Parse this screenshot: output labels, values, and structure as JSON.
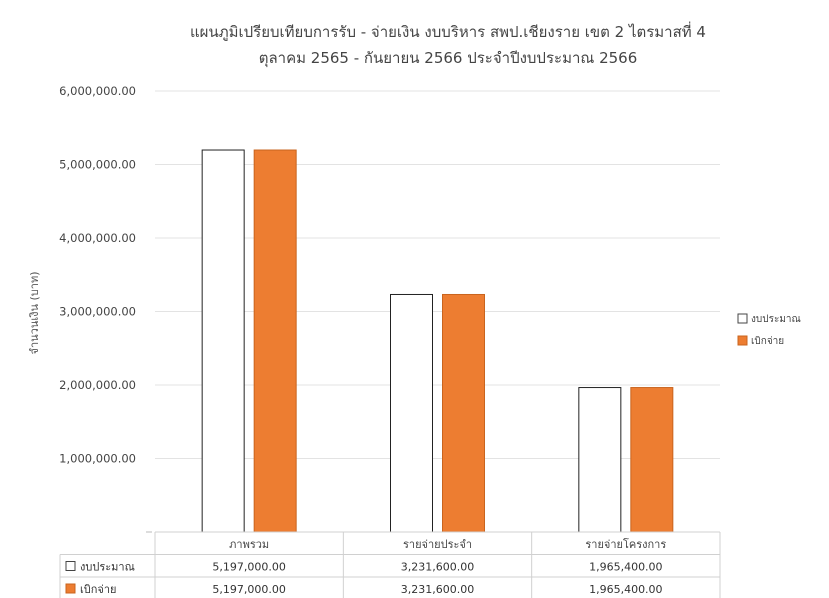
{
  "chart_data": {
    "type": "bar",
    "title_line1": "แผนภูมิเปรียบเทียบการรับ - จ่ายเงิน งบบริหาร สพป.เชียงราย เขต 2 ไตรมาสที่ 4",
    "title_line2": "ตุลาคม 2565 - กันยายน 2566 ประจำปีงบประมาณ 2566",
    "ylabel": "จำนวนเงิน (บาท)",
    "xlabel": "",
    "ylim": [
      0,
      6000000
    ],
    "yticks": [
      "6,000,000.00",
      "5,000,000.00",
      "4,000,000.00",
      "3,000,000.00",
      "2,000,000.00",
      "1,000,000.00"
    ],
    "categories": [
      "ภาพรวม",
      "รายจ่ายประจำ",
      "รายจ่ายโครงการ"
    ],
    "series": [
      {
        "name": "งบประมาณ",
        "color": "#ffffff",
        "values": [
          5197000,
          3231600,
          1965400
        ],
        "labels": [
          "5,197,000.00",
          "3,231,600.00",
          "1,965,400.00"
        ]
      },
      {
        "name": "เบิกจ่าย",
        "color": "#ed7d31",
        "values": [
          5197000,
          3231600,
          1965400
        ],
        "labels": [
          "5,197,000.00",
          "3,231,600.00",
          "1,965,400.00"
        ]
      }
    ],
    "grid": true,
    "legend_position": "right",
    "data_table": true
  }
}
